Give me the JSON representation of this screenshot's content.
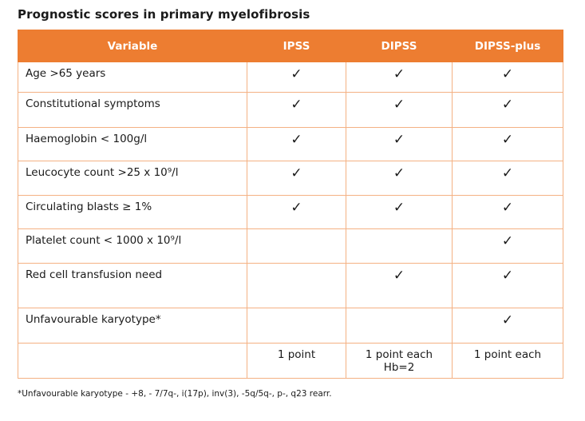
{
  "title": "Prognostic scores in primary myelofibrosis",
  "check_glyph": "✓",
  "table": {
    "headers": [
      "Variable",
      "IPSS",
      "DIPSS",
      "DIPSS-plus"
    ],
    "rows": [
      {
        "label": "Age >65 years",
        "ipss": true,
        "dipss": true,
        "dipss_plus": true
      },
      {
        "label": "Constitutional symptoms",
        "ipss": true,
        "dipss": true,
        "dipss_plus": true
      },
      {
        "label": "Haemoglobin  < 100g/l",
        "ipss": true,
        "dipss": true,
        "dipss_plus": true
      },
      {
        "label": "Leucocyte count >25 x 10⁹/l",
        "ipss": true,
        "dipss": true,
        "dipss_plus": true
      },
      {
        "label": "Circulating blasts ≥ 1%",
        "ipss": true,
        "dipss": true,
        "dipss_plus": true
      },
      {
        "label": "Platelet count < 1000 x 10⁹/l",
        "ipss": false,
        "dipss": false,
        "dipss_plus": true
      },
      {
        "label": "Red cell transfusion need",
        "ipss": false,
        "dipss": true,
        "dipss_plus": true
      },
      {
        "label": "Unfavourable karyotype*",
        "ipss": false,
        "dipss": false,
        "dipss_plus": true
      }
    ],
    "points": {
      "ipss": "1 point",
      "dipss": "1 point each",
      "dipss_note": "Hb=2",
      "dipss_plus": "1 point each"
    }
  },
  "footnote": "*Unfavourable karyotype - +8, - 7/7q-, i(17p), inv(3), -5q/5q-, p-, q23 rearr.",
  "colors": {
    "header_bg": "#ED7D31",
    "border": "#F4B183",
    "header_text": "#FFFFFF"
  }
}
